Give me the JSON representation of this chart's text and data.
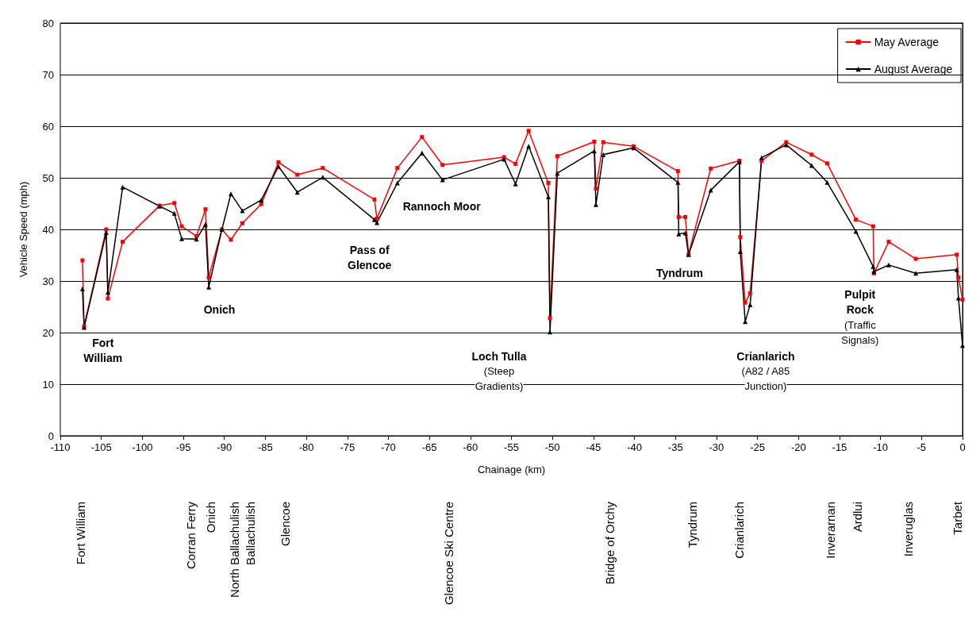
{
  "chart_data": {
    "type": "line",
    "xlabel": "Chainage (km)",
    "ylabel": "Vehicle Speed (mph)",
    "x": [
      -107.3,
      -107.1,
      -104.4,
      -104.2,
      -102.4,
      -97.9,
      -96.1,
      -95.2,
      -93.4,
      -92.3,
      -91.9,
      -90.3,
      -89.2,
      -87.8,
      -85.5,
      -83.4,
      -81.1,
      -78.0,
      -71.7,
      -71.4,
      -68.9,
      -65.9,
      -63.4,
      -55.9,
      -54.5,
      -52.9,
      -50.5,
      -50.3,
      -49.4,
      -44.9,
      -44.7,
      -43.8,
      -40.1,
      -34.7,
      -34.6,
      -33.8,
      -33.4,
      -30.7,
      -27.2,
      -27.1,
      -26.5,
      -25.9,
      -24.5,
      -21.5,
      -18.4,
      -16.5,
      -13.0,
      -10.9,
      -10.8,
      -9.0,
      -5.7,
      -0.7,
      -0.5,
      0.0
    ],
    "series": [
      {
        "name": "May Average",
        "color": "#ff0000",
        "marker": "square",
        "values": [
          34.0,
          21.2,
          40.0,
          26.6,
          37.6,
          44.6,
          45.1,
          40.6,
          38.7,
          43.9,
          30.7,
          40.0,
          38.0,
          41.2,
          44.9,
          53.0,
          50.6,
          51.9,
          45.8,
          42.1,
          51.9,
          57.9,
          52.5,
          54.0,
          52.7,
          59.1,
          49.0,
          22.8,
          54.2,
          57.0,
          47.9,
          56.9,
          56.1,
          51.3,
          42.4,
          42.4,
          35.2,
          51.8,
          53.3,
          38.5,
          25.8,
          27.6,
          53.3,
          56.9,
          54.5,
          52.8,
          41.9,
          40.6,
          31.5,
          37.6,
          34.3,
          35.1,
          30.7,
          26.4
        ]
      },
      {
        "name": "August Average",
        "color": "#000000",
        "marker": "triangle",
        "values": [
          28.5,
          21.0,
          39.4,
          27.8,
          48.2,
          44.5,
          43.1,
          38.2,
          38.1,
          41.0,
          28.8,
          40.0,
          46.9,
          43.6,
          45.7,
          52.2,
          47.2,
          50.1,
          41.9,
          41.3,
          49.0,
          54.8,
          49.6,
          53.6,
          48.8,
          56.1,
          46.3,
          20.1,
          50.9,
          55.2,
          44.8,
          54.5,
          55.8,
          49.1,
          39.1,
          39.3,
          35.1,
          47.6,
          53.1,
          35.7,
          22.1,
          25.4,
          53.9,
          56.4,
          52.4,
          49.1,
          39.6,
          32.8,
          31.8,
          33.1,
          31.5,
          32.2,
          26.7,
          17.5
        ]
      }
    ],
    "xlim": [
      -110,
      0
    ],
    "xticks": [
      -110,
      -105,
      -100,
      -95,
      -90,
      -85,
      -80,
      -75,
      -70,
      -65,
      -60,
      -55,
      -50,
      -45,
      -40,
      -35,
      -30,
      -25,
      -20,
      -15,
      -10,
      -5,
      0
    ],
    "ylim": [
      0,
      80
    ],
    "yticks": [
      0,
      10,
      20,
      30,
      40,
      50,
      60,
      70,
      80
    ],
    "grid": "y",
    "legend": "top right",
    "line_style": "solid",
    "annotations": [
      "Fort\nWilliam",
      "Onich",
      "Pass of\nGlencoe",
      "Rannoch Moor",
      "Loch Tulla\n(Steep\nGradients)",
      "Tyndrum",
      "Crianlarich\n(A82 / A85\nJunction)",
      "Pulpit\nRock\n(Traffic\nSignals)",
      "Fort William",
      "Corran Ferry",
      "Onich",
      "North Ballachulish",
      "Ballachulish",
      "Glencoe",
      "Glencoe Ski Centre",
      "Bridge of Orchy",
      "Tyndrum",
      "Crianlarich",
      "Inverarnan",
      "Ardlui",
      "Inveruglas",
      "Tarbet"
    ]
  }
}
